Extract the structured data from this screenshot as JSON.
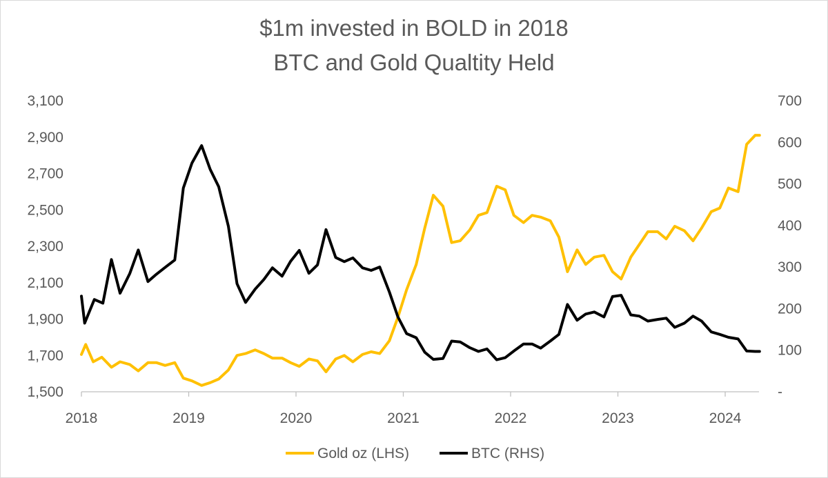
{
  "chart_data": {
    "type": "line",
    "title": "$1m invested in  BOLD in 2018",
    "subtitle": "BTC and Gold Qualtity Held",
    "x_tick_labels": [
      "2018",
      "2019",
      "2020",
      "2021",
      "2022",
      "2023",
      "2024"
    ],
    "x_range": [
      2018.0,
      2024.35
    ],
    "y_left": {
      "label": "Gold oz (LHS)",
      "ylim": [
        1500,
        3100
      ],
      "ticks": [
        1500,
        1700,
        1900,
        2100,
        2300,
        2500,
        2700,
        2900,
        3100
      ],
      "tick_labels": [
        "1,500",
        "1,700",
        "1,900",
        "2,100",
        "2,300",
        "2,500",
        "2,700",
        "2,900",
        "3,100"
      ]
    },
    "y_right": {
      "label": "BTC (RHS)",
      "ylim": [
        0,
        700
      ],
      "ticks": [
        0,
        100,
        200,
        300,
        400,
        500,
        600,
        700
      ],
      "tick_labels": [
        "-",
        "100",
        "200",
        "300",
        "400",
        "500",
        "600",
        "700"
      ]
    },
    "colors": {
      "gold": "#FFC000",
      "btc": "#000000",
      "axis": "#bfbfbf",
      "text": "#595959"
    },
    "series": [
      {
        "name": "Gold oz (LHS)",
        "axis": "left",
        "x": [
          2018.0,
          2018.04,
          2018.11,
          2018.19,
          2018.28,
          2018.36,
          2018.45,
          2018.53,
          2018.62,
          2018.7,
          2018.78,
          2018.87,
          2018.95,
          2019.03,
          2019.12,
          2019.2,
          2019.28,
          2019.37,
          2019.45,
          2019.53,
          2019.62,
          2019.7,
          2019.78,
          2019.87,
          2019.95,
          2020.03,
          2020.12,
          2020.2,
          2020.28,
          2020.37,
          2020.45,
          2020.53,
          2020.62,
          2020.7,
          2020.78,
          2020.87,
          2020.95,
          2021.03,
          2021.12,
          2021.2,
          2021.28,
          2021.37,
          2021.45,
          2021.53,
          2021.62,
          2021.7,
          2021.78,
          2021.87,
          2021.95,
          2022.03,
          2022.12,
          2022.2,
          2022.28,
          2022.37,
          2022.45,
          2022.53,
          2022.62,
          2022.7,
          2022.78,
          2022.87,
          2022.95,
          2023.03,
          2023.12,
          2023.2,
          2023.28,
          2023.37,
          2023.45,
          2023.53,
          2023.62,
          2023.7,
          2023.78,
          2023.87,
          2023.95,
          2024.03,
          2024.12,
          2024.2,
          2024.28,
          2024.32
        ],
        "values": [
          1705,
          1760,
          1665,
          1690,
          1635,
          1665,
          1650,
          1615,
          1660,
          1660,
          1645,
          1660,
          1575,
          1560,
          1535,
          1550,
          1570,
          1620,
          1700,
          1710,
          1730,
          1710,
          1685,
          1685,
          1660,
          1640,
          1680,
          1670,
          1610,
          1680,
          1700,
          1665,
          1705,
          1720,
          1710,
          1780,
          1910,
          2060,
          2200,
          2400,
          2580,
          2520,
          2320,
          2330,
          2390,
          2470,
          2485,
          2630,
          2610,
          2470,
          2430,
          2470,
          2460,
          2440,
          2350,
          2160,
          2280,
          2200,
          2240,
          2250,
          2160,
          2120,
          2240,
          2310,
          2380,
          2380,
          2340,
          2410,
          2385,
          2330,
          2400,
          2490,
          2510,
          2620,
          2600,
          2860,
          2910,
          2910
        ]
      },
      {
        "name": "BTC (RHS)",
        "axis": "right",
        "x": [
          2018.0,
          2018.03,
          2018.12,
          2018.2,
          2018.28,
          2018.36,
          2018.45,
          2018.53,
          2018.62,
          2018.7,
          2018.78,
          2018.87,
          2018.95,
          2019.03,
          2019.12,
          2019.2,
          2019.28,
          2019.37,
          2019.45,
          2019.53,
          2019.62,
          2019.7,
          2019.78,
          2019.87,
          2019.95,
          2020.03,
          2020.12,
          2020.2,
          2020.28,
          2020.37,
          2020.45,
          2020.53,
          2020.62,
          2020.7,
          2020.78,
          2020.87,
          2020.95,
          2021.03,
          2021.12,
          2021.2,
          2021.28,
          2021.37,
          2021.45,
          2021.53,
          2021.62,
          2021.7,
          2021.78,
          2021.87,
          2021.95,
          2022.03,
          2022.12,
          2022.2,
          2022.28,
          2022.37,
          2022.45,
          2022.53,
          2022.62,
          2022.7,
          2022.78,
          2022.87,
          2022.95,
          2023.03,
          2023.12,
          2023.2,
          2023.28,
          2023.37,
          2023.45,
          2023.53,
          2023.62,
          2023.7,
          2023.78,
          2023.87,
          2023.95,
          2024.03,
          2024.12,
          2024.2,
          2024.28,
          2024.32
        ],
        "values": [
          230,
          165,
          222,
          213,
          318,
          237,
          284,
          341,
          265,
          283,
          299,
          317,
          490,
          550,
          592,
          535,
          493,
          398,
          260,
          215,
          247,
          270,
          298,
          278,
          314,
          340,
          285,
          305,
          390,
          323,
          313,
          322,
          298,
          292,
          300,
          240,
          180,
          140,
          130,
          95,
          78,
          80,
          122,
          120,
          106,
          97,
          103,
          77,
          82,
          98,
          115,
          115,
          105,
          122,
          138,
          210,
          172,
          187,
          192,
          180,
          229,
          232,
          185,
          182,
          170,
          174,
          177,
          155,
          165,
          182,
          170,
          144,
          138,
          131,
          127,
          98,
          97,
          97
        ]
      }
    ]
  },
  "title_line1": "$1m invested in  BOLD in 2018",
  "title_line2": "BTC and Gold Qualtity Held",
  "legend": {
    "gold_label": "Gold oz (LHS)",
    "btc_label": "BTC (RHS)"
  }
}
